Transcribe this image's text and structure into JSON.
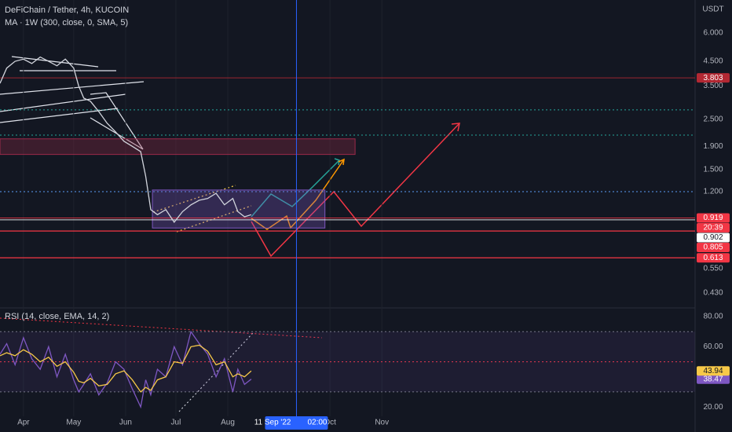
{
  "chart_data": [
    {
      "type": "line",
      "title": "DeFiChain / Tether, 4h, KUCOIN",
      "subtitle": "MA · 1W (300, close, 0, SMA, 5)",
      "axis_label": "USDT",
      "log_scale": true,
      "x": [
        -14,
        -10,
        -5,
        0,
        5,
        10,
        15,
        20,
        25,
        30,
        33,
        36,
        40,
        45,
        50,
        55,
        60,
        65,
        70,
        73,
        76,
        80,
        85,
        90,
        95,
        100,
        105,
        110,
        115,
        120,
        125,
        128,
        132,
        136
      ],
      "series": [
        {
          "color": "#d1d4dc",
          "values": [
            3.6,
            4.2,
            4.5,
            4.6,
            4.4,
            4.7,
            4.5,
            4.3,
            4.6,
            4.2,
            3.5,
            3.1,
            3.0,
            2.7,
            2.4,
            2.2,
            2.0,
            1.9,
            1.8,
            1.4,
            1.0,
            0.95,
            1.0,
            0.88,
            0.98,
            1.05,
            1.1,
            1.12,
            1.18,
            1.05,
            1.12,
            0.98,
            0.93,
            0.95
          ]
        }
      ],
      "xlim": [
        -14,
        401
      ],
      "xticks": [
        {
          "value": 0,
          "label": "Apr"
        },
        {
          "value": 30,
          "label": "May"
        },
        {
          "value": 61,
          "label": "Jun"
        },
        {
          "value": 91,
          "label": "Jul"
        },
        {
          "value": 122,
          "label": "Aug"
        },
        {
          "value": 183,
          "label": "Oct"
        },
        {
          "value": 214,
          "label": "Nov"
        }
      ],
      "ylim": [
        0.375,
        8.38
      ],
      "yticks": [
        {
          "value": 6,
          "label": "6.000"
        },
        {
          "value": 4.5,
          "label": "4.500"
        },
        {
          "value": 3.5,
          "label": "3.500"
        },
        {
          "value": 2.5,
          "label": "2.500"
        },
        {
          "value": 1.9,
          "label": "1.900"
        },
        {
          "value": 1.5,
          "label": "1.500"
        },
        {
          "value": 1.2,
          "label": "1.200"
        },
        {
          "value": 0.55,
          "label": "0.550"
        },
        {
          "value": 0.43,
          "label": "0.430"
        }
      ],
      "price_lines": [
        {
          "value": 3.803,
          "label": "3.803",
          "color": "#b22833"
        },
        {
          "value": 0.919,
          "label": "0.919",
          "color": "#f23645"
        },
        {
          "value": 0.902,
          "label": "0.902",
          "color": "#ffffff"
        },
        {
          "value": 0.805,
          "label": "0.805",
          "color": "#f23645"
        },
        {
          "value": 0.613,
          "label": "0.613",
          "color": "#f23645"
        }
      ],
      "countdown": "20:39",
      "levels": [
        {
          "value": 2.75,
          "color": "#26a69a"
        },
        {
          "value": 2.13,
          "color": "#26a69a"
        },
        {
          "value": 1.2,
          "color": "#5b9cf6"
        }
      ],
      "zones": [
        {
          "x": [
            -14,
            198
          ],
          "y": [
            1.75,
            2.05
          ],
          "color": "#9c2a4a"
        },
        {
          "x": [
            77,
            180
          ],
          "y": [
            0.83,
            1.22
          ],
          "color": "#7e57c2"
        }
      ],
      "crosshair": {
        "x": 163,
        "label": "11 Sep '22",
        "time": "02:00"
      }
    },
    {
      "type": "line",
      "title": "RSI (14, close, EMA, 14, 2)",
      "series": [
        {
          "color": "#7e57c2",
          "values": [
            55,
            62,
            48,
            66,
            52,
            45,
            60,
            40,
            55,
            38,
            30,
            35,
            42,
            28,
            36,
            50,
            45,
            32,
            20,
            38,
            28,
            45,
            40,
            60,
            48,
            70,
            62,
            55,
            40,
            52,
            30,
            45,
            35,
            38.47
          ],
          "value_labels": [
            null,
            null,
            null,
            null,
            null,
            null,
            null,
            null,
            null,
            null,
            null,
            null,
            null,
            null,
            null,
            null,
            null,
            null,
            null,
            null,
            null,
            null,
            null,
            null,
            null,
            null,
            null,
            null,
            null,
            null,
            null,
            null,
            null,
            "38.47"
          ]
        },
        {
          "color": "#f7c948",
          "values": [
            54,
            56,
            54,
            58,
            55,
            50,
            53,
            47,
            50,
            43,
            37,
            36,
            39,
            34,
            35,
            42,
            44,
            38,
            30,
            33,
            31,
            38,
            40,
            50,
            49,
            60,
            61,
            57,
            48,
            50,
            40,
            42,
            40,
            43.94
          ],
          "value_labels": [
            null,
            null,
            null,
            null,
            null,
            null,
            null,
            null,
            null,
            null,
            null,
            null,
            null,
            null,
            null,
            null,
            null,
            null,
            null,
            null,
            null,
            null,
            null,
            null,
            null,
            null,
            null,
            null,
            null,
            null,
            null,
            null,
            null,
            "43.94"
          ]
        }
      ],
      "ylim": [
        13.8,
        84.2
      ],
      "yticks": [
        {
          "value": 80,
          "label": "80.00"
        },
        {
          "value": 60,
          "label": "60.00"
        },
        {
          "value": 20,
          "label": "20.00"
        }
      ],
      "levels": [
        {
          "value": 70,
          "color": "#787b86"
        },
        {
          "value": 50,
          "color": "#f23645"
        },
        {
          "value": 30,
          "color": "#787b86"
        }
      ],
      "band": [
        30,
        70
      ]
    }
  ]
}
